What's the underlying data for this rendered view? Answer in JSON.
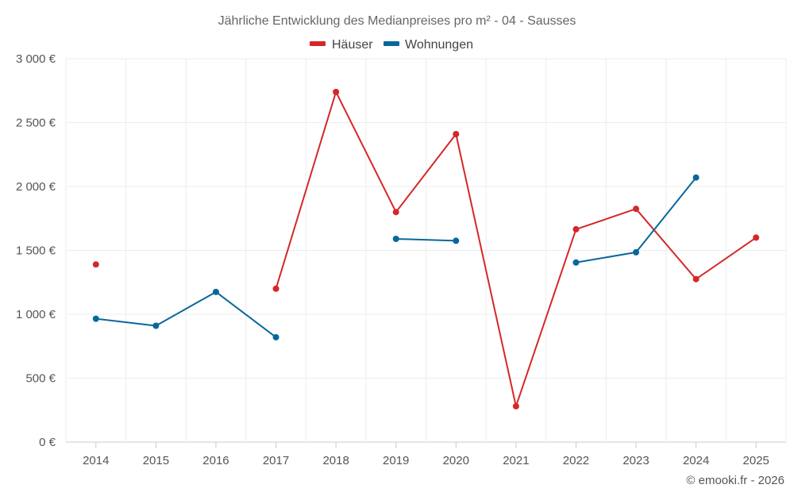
{
  "chart_data": {
    "type": "line",
    "title": "Jährliche Entwicklung des Medianpreises pro m² - 04 - Sausses",
    "categories": [
      "2014",
      "2015",
      "2016",
      "2017",
      "2018",
      "2019",
      "2020",
      "2021",
      "2022",
      "2023",
      "2024",
      "2025"
    ],
    "ylim": [
      0,
      3000
    ],
    "yticks": [
      0,
      500,
      1000,
      1500,
      2000,
      2500,
      3000
    ],
    "ytick_labels": [
      "0 €",
      "500 €",
      "1 000 €",
      "1 500 €",
      "2 000 €",
      "2 500 €",
      "3 000 €"
    ],
    "legend_position": "top-center",
    "grid": true,
    "series": [
      {
        "name": "Häuser",
        "color": "#d62728",
        "values": [
          1390,
          null,
          null,
          1200,
          2740,
          1800,
          2410,
          280,
          1665,
          1825,
          1275,
          1600
        ]
      },
      {
        "name": "Wohnungen",
        "color": "#08679c",
        "values": [
          965,
          910,
          1175,
          820,
          null,
          1590,
          1575,
          null,
          1405,
          1485,
          2070,
          null
        ]
      }
    ]
  },
  "credit": "© emooki.fr - 2026"
}
